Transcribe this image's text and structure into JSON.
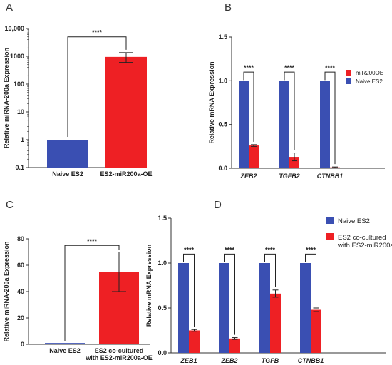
{
  "chart_data": [
    {
      "panel": "A",
      "type": "bar",
      "scale": "log",
      "ylabel": "Relative miRNA-200a Expression",
      "ylim": [
        0.1,
        10000
      ],
      "yticks": [
        "0.1",
        "1",
        "10",
        "100",
        "1000",
        "10,000"
      ],
      "categories": [
        "Naive ES2",
        "ES2-miR200a-OE"
      ],
      "values": [
        1,
        950
      ],
      "errors": [
        [
          1,
          1
        ],
        [
          600,
          1350
        ]
      ],
      "colors": [
        "#3a4fb2",
        "#ee2024"
      ],
      "significance": "****"
    },
    {
      "panel": "B",
      "type": "bar",
      "ylabel": "Relative mRNA Expression",
      "ylim": [
        0,
        1.5
      ],
      "yticks": [
        "0.0",
        "0.5",
        "1.0",
        "1.5"
      ],
      "categories": [
        "ZEB2",
        "TGFB2",
        "CTNBB1"
      ],
      "series": [
        {
          "name": "Naive ES2",
          "color": "#3a4fb2",
          "values": [
            1.0,
            1.0,
            1.0
          ],
          "errors": [
            0,
            0,
            0
          ]
        },
        {
          "name": "miR200OE",
          "color": "#ee2024",
          "values": [
            0.26,
            0.13,
            0.01
          ],
          "errors": [
            0.01,
            0.045,
            0.005
          ]
        }
      ],
      "legend_order": [
        "miR200OE",
        "Naive ES2"
      ],
      "legend_position": "top-right",
      "significance": [
        "****",
        "****",
        "****"
      ]
    },
    {
      "panel": "C",
      "type": "bar",
      "ylabel": "Relative miRNA-200a Expression",
      "ylim": [
        0,
        80
      ],
      "yticks": [
        "0",
        "20",
        "40",
        "60",
        "80"
      ],
      "categories": [
        "Naive ES2",
        "ES2 co-cultured\nwith ES2-miR200a-OE"
      ],
      "values": [
        1,
        55
      ],
      "errors": [
        0,
        15
      ],
      "colors": [
        "#3a4fb2",
        "#ee2024"
      ],
      "significance": "****"
    },
    {
      "panel": "D",
      "type": "bar",
      "ylabel": "Relative mRNA Expression",
      "ylim": [
        0,
        1.5
      ],
      "yticks": [
        "0.0",
        "0.5",
        "1.0",
        "1.5"
      ],
      "categories": [
        "ZEB1",
        "ZEB2",
        "TGFB",
        "CTNBB1"
      ],
      "series": [
        {
          "name": "Naive ES2",
          "color": "#3a4fb2",
          "values": [
            1.0,
            1.0,
            1.0,
            1.0
          ],
          "errors": [
            0,
            0,
            0,
            0
          ]
        },
        {
          "name": "ES2 co-cultured\nwith ES2-miR200a",
          "color": "#ee2024",
          "values": [
            0.25,
            0.16,
            0.66,
            0.48
          ],
          "errors": [
            0.01,
            0.01,
            0.04,
            0.02
          ]
        }
      ],
      "legend_order": [
        "Naive ES2",
        "ES2 co-cultured\nwith ES2-miR200a"
      ],
      "legend_position": "top-right",
      "significance": [
        "****",
        "****",
        "****",
        "****"
      ]
    }
  ]
}
